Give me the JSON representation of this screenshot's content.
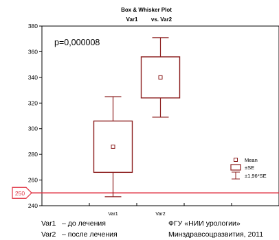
{
  "chart_data": {
    "type": "box",
    "title": "Box & Whisker Plot",
    "subtitle_parts": [
      "Var1",
      "vs. Var2"
    ],
    "annotation": "p=0,000008",
    "categories": [
      "Var1",
      "Var2"
    ],
    "series": [
      {
        "category": "Var1",
        "mean": 286,
        "se_low": 266,
        "se_high": 306,
        "ci_low": 247,
        "ci_high": 325
      },
      {
        "category": "Var2",
        "mean": 340,
        "se_low": 324,
        "se_high": 356,
        "ci_low": 309,
        "ci_high": 371
      }
    ],
    "ylim": [
      240,
      380
    ],
    "yticks": [
      240,
      260,
      280,
      300,
      320,
      340,
      360,
      380
    ],
    "reference_line": {
      "value": 250,
      "label": "250",
      "color": "#e03040"
    },
    "legend": {
      "placement": "bottom-right",
      "items": [
        {
          "symbol": "mean",
          "label": "Mean"
        },
        {
          "symbol": "box",
          "label": "±SE"
        },
        {
          "symbol": "whisker",
          "label": "±1,96*SE"
        }
      ]
    },
    "grid": false,
    "colors": {
      "series": "#8b1c1c",
      "axis": "#000000"
    }
  },
  "footnotes": {
    "left": [
      {
        "term": "Var1",
        "text": "– до лечения"
      },
      {
        "term": "Var2",
        "text": "– после лечения"
      }
    ],
    "right": [
      "ФГУ «НИИ урологии»",
      "Минздравсоцразвития, 2011"
    ]
  }
}
